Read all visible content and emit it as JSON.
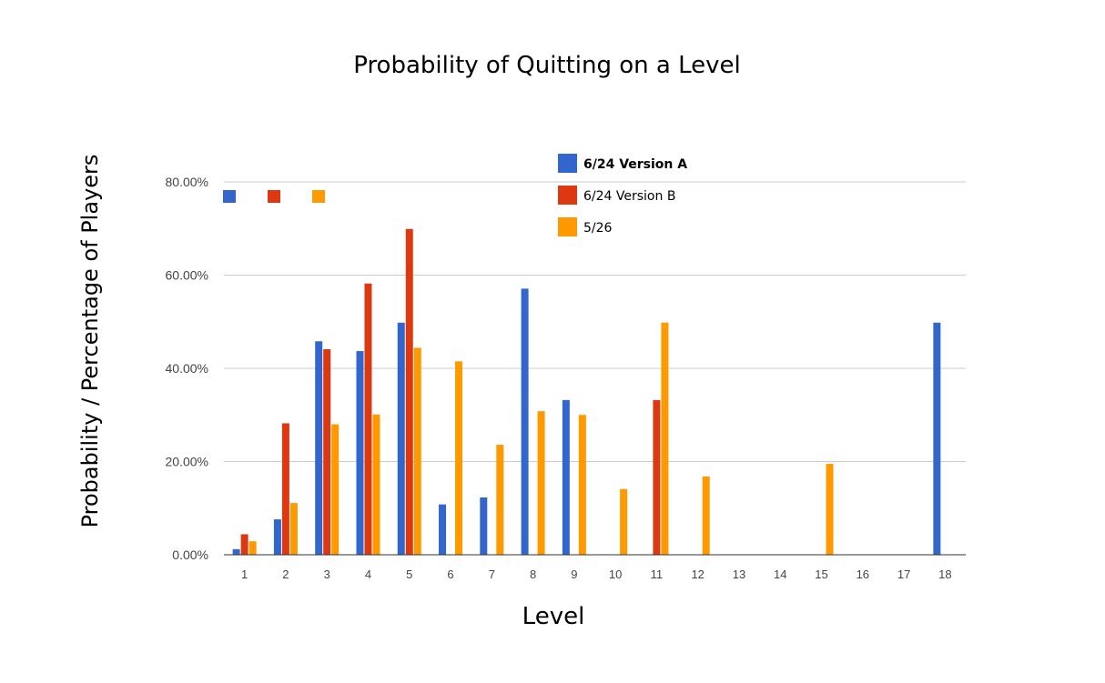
{
  "chart_data": {
    "type": "bar",
    "title": "Probability of Quitting on a Level",
    "xlabel": "Level",
    "ylabel": "Probability / Percentage of Players",
    "ylim": [
      0,
      80
    ],
    "yticks": [
      "0.00%",
      "20.00%",
      "40.00%",
      "60.00%",
      "80.00%"
    ],
    "grid": true,
    "legend_position": "top-right",
    "categories": [
      "1",
      "2",
      "3",
      "4",
      "5",
      "6",
      "7",
      "8",
      "9",
      "10",
      "11",
      "12",
      "13",
      "14",
      "15",
      "16",
      "17",
      "18"
    ],
    "series": [
      {
        "name": "6/24 Version A",
        "color": "#3366cc",
        "values": [
          1.2,
          7.6,
          45.8,
          43.7,
          49.8,
          10.8,
          12.3,
          57.1,
          33.2,
          0,
          0,
          0,
          0,
          0,
          0,
          0,
          0,
          49.8
        ]
      },
      {
        "name": "6/24 Version B",
        "color": "#dc3912",
        "values": [
          4.4,
          28.2,
          44.1,
          58.2,
          69.9,
          0,
          0,
          0,
          0,
          0,
          33.2,
          0,
          0,
          0,
          0,
          0,
          0,
          0
        ]
      },
      {
        "name": "5/26",
        "color": "#ff9900",
        "values": [
          2.9,
          11.1,
          28.0,
          30.1,
          44.4,
          41.5,
          23.6,
          30.8,
          30.0,
          14.1,
          49.8,
          16.8,
          0,
          0,
          19.5,
          0,
          0,
          0
        ]
      }
    ]
  }
}
